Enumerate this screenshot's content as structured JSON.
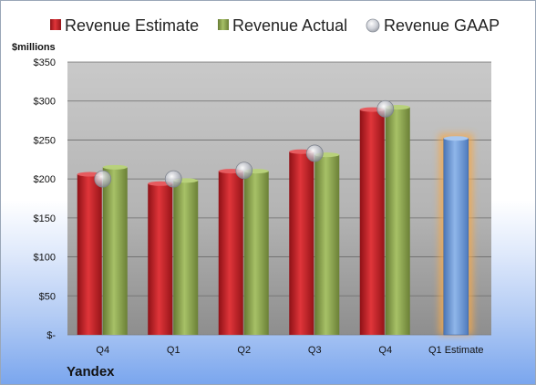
{
  "chart_data": {
    "type": "bar",
    "company": "Yandex",
    "units_label": "$millions",
    "categories": [
      "Q4",
      "Q1",
      "Q2",
      "Q3",
      "Q4",
      "Q1 Estimate"
    ],
    "y_ticks": [
      "$-",
      "$50",
      "$100",
      "$150",
      "$200",
      "$250",
      "$300",
      "$350"
    ],
    "ylim": [
      0,
      350
    ],
    "grid": true,
    "legend_position": "top",
    "series": [
      {
        "name": "Revenue Estimate",
        "type": "bar",
        "color": "#c0262b",
        "values": [
          206,
          194,
          210,
          235,
          289,
          null
        ]
      },
      {
        "name": "Revenue Actual",
        "type": "bar",
        "color": "#8fa94f",
        "values": [
          215,
          198,
          210,
          231,
          292,
          null
        ]
      },
      {
        "name": "Revenue GAAP",
        "type": "marker",
        "color": "#b8bcc6",
        "values": [
          200,
          200,
          211,
          233,
          290,
          null
        ]
      }
    ],
    "estimate_bar": {
      "category_index": 5,
      "value": 252,
      "color": "#6f9ad6",
      "glow_color": "#f5a94c"
    }
  }
}
